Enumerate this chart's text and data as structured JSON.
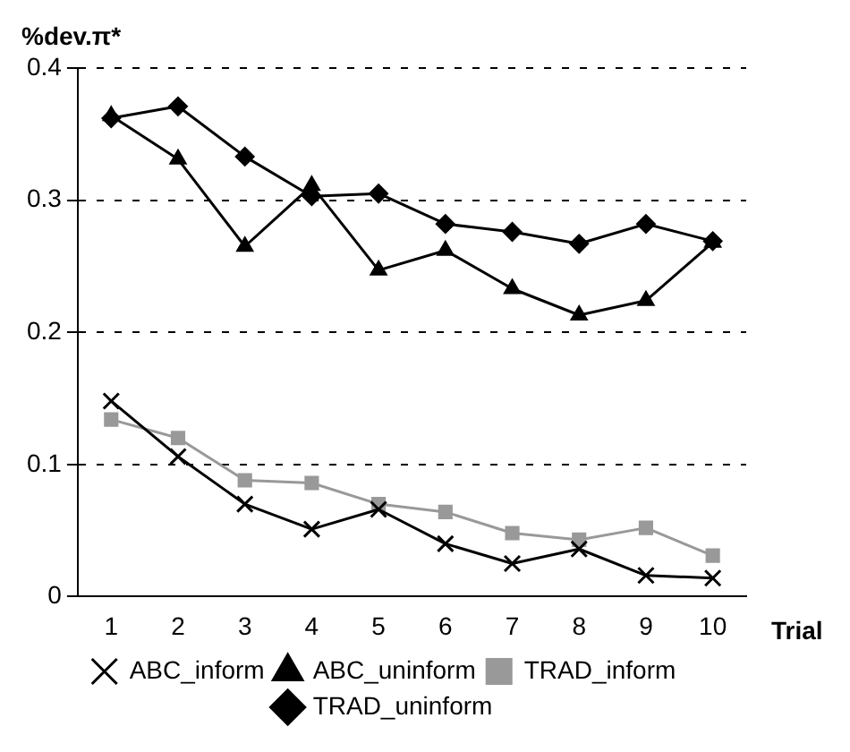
{
  "chart_data": {
    "type": "line",
    "ylabel": "%dev.π*",
    "xlabel": "Trial",
    "categories": [
      "1",
      "2",
      "3",
      "4",
      "5",
      "6",
      "7",
      "8",
      "9",
      "10"
    ],
    "series": [
      {
        "name": "TRAD_uninform",
        "color": "#000000",
        "marker": "diamond",
        "values": [
          0.362,
          0.371,
          0.333,
          0.303,
          0.305,
          0.282,
          0.276,
          0.267,
          0.282,
          0.269
        ]
      },
      {
        "name": "TRAD_inform",
        "color": "#999999",
        "marker": "square",
        "values": [
          0.134,
          0.12,
          0.088,
          0.086,
          0.07,
          0.064,
          0.048,
          0.043,
          0.052,
          0.031
        ]
      },
      {
        "name": "ABC_uninform",
        "color": "#000000",
        "marker": "triangle",
        "values": [
          0.364,
          0.331,
          0.265,
          0.311,
          0.247,
          0.262,
          0.233,
          0.213,
          0.224,
          0.268
        ]
      },
      {
        "name": "ABC_inform",
        "color": "#000000",
        "marker": "cross",
        "values": [
          0.148,
          0.106,
          0.07,
          0.051,
          0.066,
          0.04,
          0.025,
          0.036,
          0.016,
          0.014
        ]
      }
    ],
    "ylim": [
      0,
      0.4
    ],
    "yticks": [
      0,
      0.1,
      0.2,
      0.3,
      0.4
    ],
    "grid": "y",
    "legend": "bottom",
    "line_style": "solid"
  }
}
